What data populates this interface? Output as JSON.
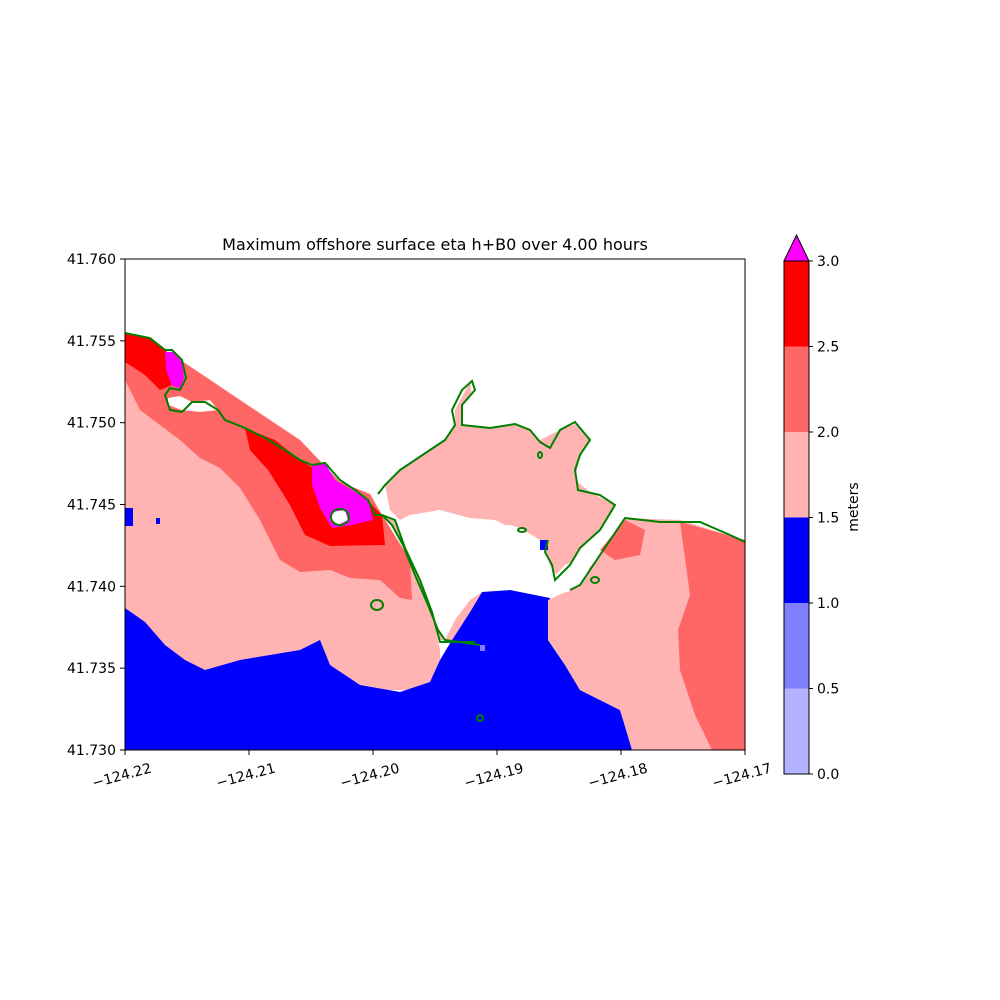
{
  "chart_data": {
    "type": "heatmap",
    "title": "Maximum offshore surface eta h+B0 over 4.00 hours",
    "xlim": [
      -124.22,
      -124.17
    ],
    "ylim": [
      41.73,
      41.76
    ],
    "x_ticks": [
      "−124.22",
      "−124.21",
      "−124.20",
      "−124.19",
      "−124.18",
      "−124.17"
    ],
    "y_ticks": [
      "41.760",
      "41.755",
      "41.750",
      "41.745",
      "41.740",
      "41.735",
      "41.730"
    ],
    "colorbar": {
      "label": "meters",
      "ticks": [
        "0.0",
        "0.5",
        "1.0",
        "1.5",
        "2.0",
        "2.5",
        "3.0"
      ],
      "levels": [
        0.0,
        0.5,
        1.0,
        1.5,
        2.0,
        2.5,
        3.0
      ],
      "colors": [
        "#b3b3ff",
        "#8080ff",
        "#0000ff",
        "#ffb3b3",
        "#ff6666",
        "#ff0000"
      ],
      "extend_max_color": "#ff00ff"
    },
    "region_levels": {
      "south_offshore": "1.0-1.5",
      "west_offshore": "1.5-2.0",
      "west_nearshore_band": "2.0-2.5",
      "west_shoreline_peak": "2.5-3.0",
      "west_shoreline_extreme": ">3.0",
      "harbor_interior": "1.5-2.0",
      "east_shore_band": "2.0-2.5"
    },
    "shoreline_color": "#008000"
  }
}
